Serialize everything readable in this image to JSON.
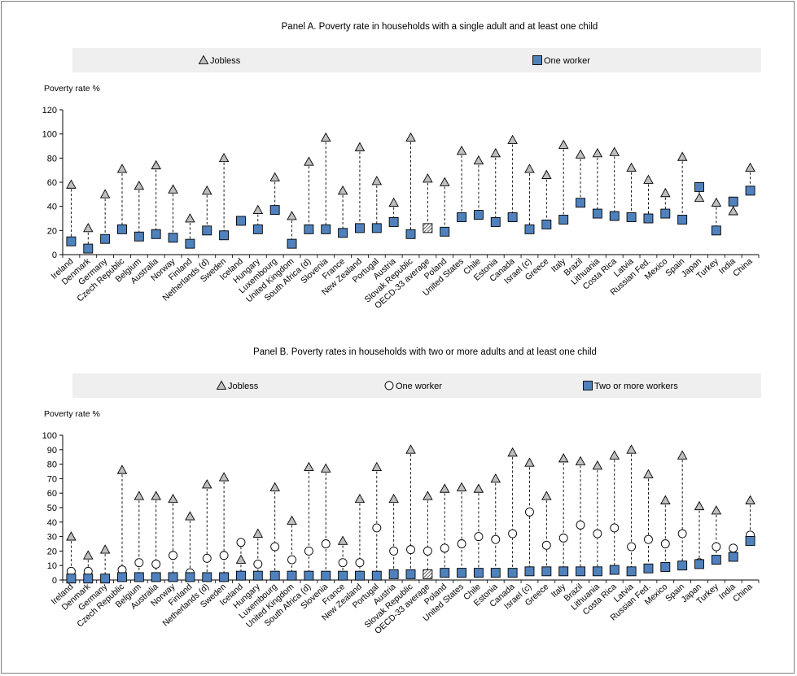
{
  "chart_data": [
    {
      "type": "scatter",
      "title": "Panel A. Poverty rate in households with a single adult and at least one child",
      "ylabel": "Poverty rate %",
      "ylim": [
        0,
        120
      ],
      "yticks": [
        0,
        20,
        40,
        60,
        80,
        100,
        120
      ],
      "legend_position": "top",
      "grid": false,
      "categories": [
        "Ireland",
        "Denmark",
        "Germany",
        "Czech Republic",
        "Belgium",
        "Australia",
        "Norway",
        "Finland",
        "Netherlands (d)",
        "Sweden",
        "Iceland",
        "Hungary",
        "Luxembourg",
        "United Kingdom",
        "South Africa (d)",
        "Slovenia",
        "France",
        "New Zealand",
        "Portugal",
        "Austria",
        "Slovak Republic",
        "OECD-33 average",
        "Poland",
        "United States",
        "Chile",
        "Estonia",
        "Canada",
        "Israel (c)",
        "Greece",
        "Italy",
        "Brazil",
        "Lithuania",
        "Costa Rica",
        "Latvia",
        "Russian Fed.",
        "Mexico",
        "Spain",
        "Japan",
        "Turkey",
        "India",
        "China"
      ],
      "highlight_category": "OECD-33 average",
      "series": [
        {
          "name": "Jobless",
          "marker": "triangle",
          "color": "#bfbfbf",
          "values": [
            58,
            22,
            50,
            71,
            57,
            74,
            54,
            30,
            53,
            80,
            null,
            37,
            64,
            32,
            77,
            97,
            53,
            89,
            61,
            43,
            97,
            63,
            60,
            86,
            78,
            84,
            95,
            71,
            66,
            91,
            83,
            84,
            85,
            72,
            62,
            51,
            81,
            47,
            43,
            36,
            72
          ]
        },
        {
          "name": "One worker",
          "marker": "square",
          "color": "#4f81bd",
          "values": [
            11,
            5,
            13,
            21,
            15,
            17,
            14,
            9,
            20,
            16,
            28,
            21,
            37,
            9,
            21,
            21,
            18,
            22,
            22,
            27,
            17,
            22,
            19,
            31,
            33,
            27,
            31,
            21,
            25,
            29,
            43,
            34,
            32,
            31,
            30,
            34,
            29,
            56,
            20,
            44,
            53
          ]
        }
      ]
    },
    {
      "type": "scatter",
      "title": "Panel B. Poverty rates in households with two or more adults and at least one child",
      "ylabel": "Poverty rate %",
      "ylim": [
        0,
        100
      ],
      "yticks": [
        0,
        10,
        20,
        30,
        40,
        50,
        60,
        70,
        80,
        90,
        100
      ],
      "legend_position": "top",
      "grid": false,
      "categories": [
        "Ireland",
        "Denmark",
        "Germany",
        "Czech Republic",
        "Belgium",
        "Australia",
        "Norway",
        "Finland",
        "Netherlands (d)",
        "Sweden",
        "Iceland",
        "Hungary",
        "Luxembourg",
        "United Kingdom",
        "South Africa (d)",
        "Slovenia",
        "France",
        "New Zealand",
        "Portugal",
        "Austria",
        "Slovak Republic",
        "OECD-33 average",
        "Poland",
        "United States",
        "Chile",
        "Estonia",
        "Canada",
        "Israel (c)",
        "Greece",
        "Italy",
        "Brazil",
        "Lithuania",
        "Costa Rica",
        "Latvia",
        "Russian Fed.",
        "Mexico",
        "Spain",
        "Japan",
        "Turkey",
        "India",
        "China"
      ],
      "highlight_category": "OECD-33 average",
      "series": [
        {
          "name": "Jobless",
          "marker": "triangle",
          "color": "#bfbfbf",
          "values": [
            30,
            17,
            21,
            76,
            58,
            58,
            56,
            44,
            66,
            71,
            14,
            32,
            64,
            41,
            78,
            77,
            27,
            56,
            78,
            56,
            90,
            58,
            63,
            64,
            63,
            70,
            88,
            81,
            58,
            84,
            82,
            79,
            86,
            90,
            73,
            55,
            86,
            51,
            48,
            null,
            55
          ]
        },
        {
          "name": "One worker",
          "marker": "circle",
          "color": "#ffffff",
          "values": [
            6,
            6,
            null,
            7,
            12,
            11,
            17,
            5,
            15,
            17,
            26,
            11,
            23,
            14,
            20,
            25,
            12,
            12,
            36,
            20,
            21,
            20,
            22,
            25,
            30,
            28,
            32,
            47,
            24,
            29,
            38,
            32,
            36,
            23,
            28,
            25,
            32,
            12,
            23,
            22,
            31
          ]
        },
        {
          "name": "Two or more workers",
          "marker": "square",
          "color": "#4f81bd",
          "values": [
            1,
            1,
            1,
            2,
            2,
            2,
            2,
            2,
            2,
            2,
            3,
            3,
            3,
            3,
            3,
            3,
            3,
            3,
            3,
            4,
            4,
            4,
            5,
            5,
            5,
            5,
            5,
            6,
            6,
            6,
            6,
            6,
            7,
            6,
            8,
            9,
            10,
            11,
            14,
            16,
            27
          ]
        }
      ]
    }
  ]
}
